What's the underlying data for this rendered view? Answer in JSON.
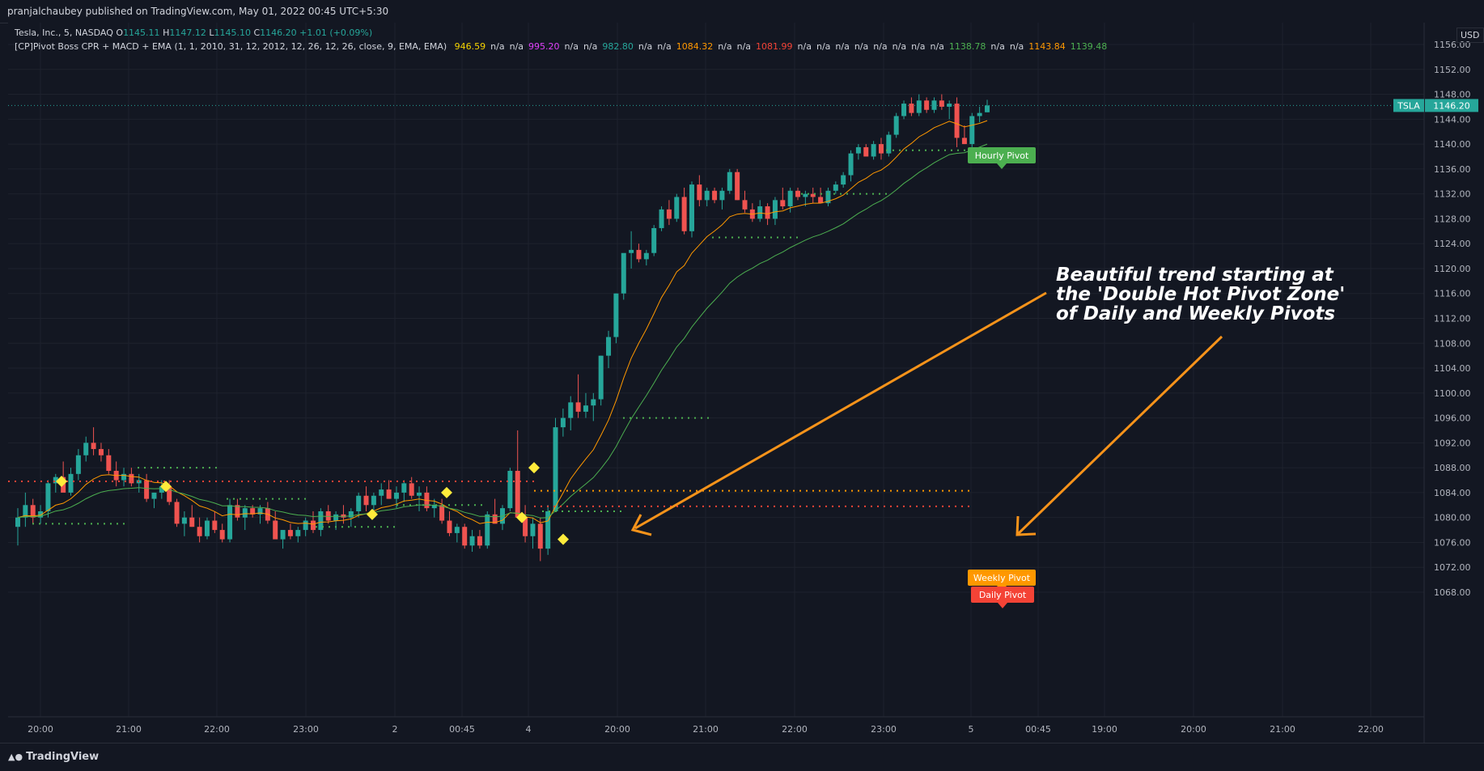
{
  "header": {
    "publisher": "pranjalchaubey published on TradingView.com, May 01, 2022 00:45 UTC+5:30"
  },
  "symbol_legend": {
    "name": "Tesla, Inc., 5, NASDAQ",
    "o_label": "O",
    "o": "1145.11",
    "h_label": "H",
    "h": "1147.12",
    "l_label": "L",
    "l": "1145.10",
    "c_label": "C",
    "c": "1146.20",
    "change": "+1.01 (+0.09%)"
  },
  "indicator_legend": {
    "name": "[CP]Pivot Boss CPR + MACD + EMA (1, 1, 2010, 31, 12, 2012, 12, 26, 12, 26, close, 9, EMA, EMA)",
    "values": [
      {
        "text": "946.59",
        "color": "#f5d300"
      },
      {
        "text": "n/a",
        "color": "#d1d4dc"
      },
      {
        "text": "n/a",
        "color": "#d1d4dc"
      },
      {
        "text": "995.20",
        "color": "#e040fb"
      },
      {
        "text": "n/a",
        "color": "#d1d4dc"
      },
      {
        "text": "n/a",
        "color": "#d1d4dc"
      },
      {
        "text": "982.80",
        "color": "#26a69a"
      },
      {
        "text": "n/a",
        "color": "#d1d4dc"
      },
      {
        "text": "n/a",
        "color": "#d1d4dc"
      },
      {
        "text": "1084.32",
        "color": "#ff9800"
      },
      {
        "text": "n/a",
        "color": "#d1d4dc"
      },
      {
        "text": "n/a",
        "color": "#d1d4dc"
      },
      {
        "text": "1081.99",
        "color": "#f44336"
      },
      {
        "text": "n/a",
        "color": "#d1d4dc"
      },
      {
        "text": "n/a",
        "color": "#d1d4dc"
      },
      {
        "text": "n/a",
        "color": "#d1d4dc"
      },
      {
        "text": "n/a",
        "color": "#d1d4dc"
      },
      {
        "text": "n/a",
        "color": "#d1d4dc"
      },
      {
        "text": "n/a",
        "color": "#d1d4dc"
      },
      {
        "text": "n/a",
        "color": "#d1d4dc"
      },
      {
        "text": "n/a",
        "color": "#d1d4dc"
      },
      {
        "text": "1138.78",
        "color": "#4caf50"
      },
      {
        "text": "n/a",
        "color": "#d1d4dc"
      },
      {
        "text": "n/a",
        "color": "#d1d4dc"
      },
      {
        "text": "1143.84",
        "color": "#ff9800"
      },
      {
        "text": "1139.48",
        "color": "#4caf50"
      }
    ]
  },
  "price_scale": {
    "currency": "USD",
    "ticks": [
      "1156.00",
      "1152.00",
      "1148.00",
      "1144.00",
      "1140.00",
      "1136.00",
      "1132.00",
      "1128.00",
      "1124.00",
      "1120.00",
      "1116.00",
      "1112.00",
      "1108.00",
      "1104.00",
      "1100.00",
      "1096.00",
      "1092.00",
      "1088.00",
      "1084.00",
      "1080.00",
      "1076.00",
      "1072.00",
      "1068.00"
    ],
    "tick_values": [
      1156,
      1152,
      1148,
      1144,
      1140,
      1136,
      1132,
      1128,
      1124,
      1120,
      1116,
      1112,
      1108,
      1104,
      1100,
      1096,
      1092,
      1088,
      1084,
      1080,
      1076,
      1072,
      1068
    ],
    "range": [
      1065,
      1160
    ],
    "symbol_tag": "TSLA",
    "last_price": "1146.20",
    "last_price_value": 1146.2
  },
  "time_scale": {
    "ticks": [
      "20:00",
      "21:00",
      "22:00",
      "23:00",
      "2",
      "00:45",
      "4",
      "20:00",
      "21:00",
      "22:00",
      "23:00",
      "5",
      "00:45",
      "19:00",
      "20:00",
      "21:00",
      "22:00"
    ]
  },
  "colors": {
    "background": "#131722",
    "grid": "#1e222d",
    "up": "#26a69a",
    "down": "#ef5350",
    "ema_fast": "#ff9800",
    "ema_slow": "#4caf50",
    "daily_pivot": "#f44336",
    "weekly_pivot": "#ff9800",
    "hourly_pivot": "#4caf50",
    "annotation_arrow": "#f7931a"
  },
  "labels": {
    "hourly_pivot": "Hourly Pivot",
    "weekly_pivot": "Weekly Pivot",
    "daily_pivot": "Daily Pivot",
    "annotation_line1": "Beautiful trend starting at",
    "annotation_line2": "the 'Double Hot Pivot Zone'",
    "annotation_line3": "of Daily and Weekly Pivots"
  },
  "footer": {
    "brand": "TradingView"
  }
}
